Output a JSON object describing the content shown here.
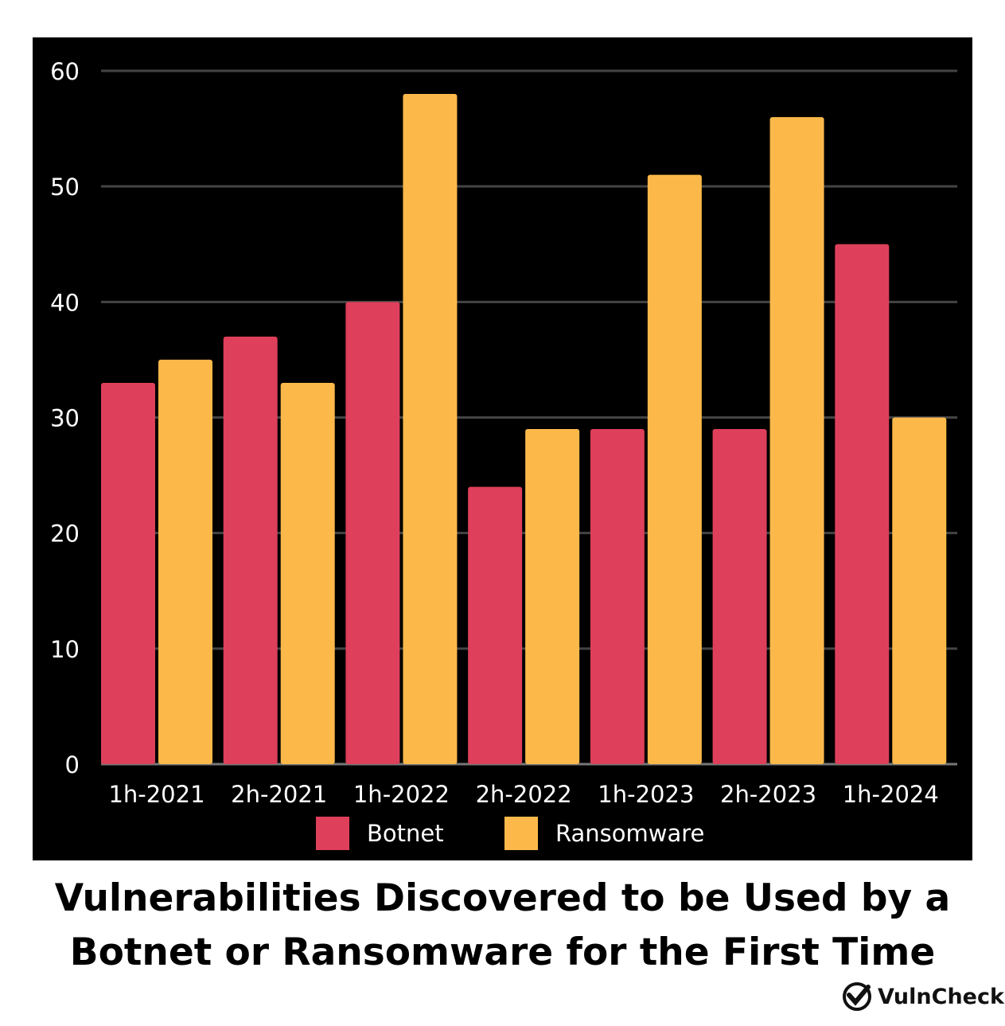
{
  "chart_data": {
    "type": "bar",
    "title": "Vulnerabilities Discovered to be Used by a Botnet or Ransomware for the First Time",
    "title_lines": [
      "Vulnerabilities Discovered to be Used by a",
      "Botnet or Ransomware for the First Time"
    ],
    "categories": [
      "1h-2021",
      "2h-2021",
      "1h-2022",
      "2h-2022",
      "1h-2023",
      "2h-2023",
      "1h-2024"
    ],
    "series": [
      {
        "name": "Botnet",
        "color": "#de3f5b",
        "values": [
          33,
          37,
          40,
          24,
          29,
          29,
          45
        ]
      },
      {
        "name": "Ransomware",
        "color": "#fcb94a",
        "values": [
          35,
          33,
          58,
          29,
          51,
          56,
          30
        ]
      }
    ],
    "ylim": [
      0,
      60
    ],
    "yticks": [
      0,
      10,
      20,
      30,
      40,
      50,
      60
    ],
    "grid": true,
    "legend": "bottom",
    "background": "#000000"
  },
  "logo": {
    "text": "VulnCheck"
  }
}
